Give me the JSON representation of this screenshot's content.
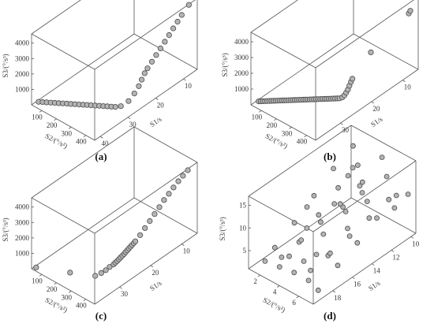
{
  "chart_data": [
    {
      "type": "scatter",
      "projection": "3d",
      "panel_label": "(a)",
      "xlabel": "S1/s",
      "ylabel": "S2/(°/s²)",
      "zlabel": "S3/(°/s³)",
      "xticks": [
        "10",
        "20",
        "30",
        "40"
      ],
      "yticks": [
        "100",
        "200",
        "300",
        "400"
      ],
      "zticks": [
        "1000",
        "2000",
        "3000",
        "4000"
      ],
      "xlim": [
        5,
        42
      ],
      "ylim": [
        30,
        460
      ],
      "zlim": [
        0,
        4600
      ],
      "points": [
        {
          "x": 40,
          "y": 40,
          "z": 0
        },
        {
          "x": 39.6,
          "y": 60,
          "z": 40
        },
        {
          "x": 39.2,
          "y": 80,
          "z": 80
        },
        {
          "x": 38.8,
          "y": 100,
          "z": 120
        },
        {
          "x": 38.4,
          "y": 120,
          "z": 160
        },
        {
          "x": 38,
          "y": 140,
          "z": 200
        },
        {
          "x": 37.6,
          "y": 160,
          "z": 240
        },
        {
          "x": 37.2,
          "y": 180,
          "z": 280
        },
        {
          "x": 36.8,
          "y": 200,
          "z": 320
        },
        {
          "x": 36.4,
          "y": 220,
          "z": 360
        },
        {
          "x": 36,
          "y": 240,
          "z": 400
        },
        {
          "x": 35.6,
          "y": 260,
          "z": 440
        },
        {
          "x": 35.2,
          "y": 280,
          "z": 480
        },
        {
          "x": 34.8,
          "y": 300,
          "z": 520
        },
        {
          "x": 34.4,
          "y": 320,
          "z": 560
        },
        {
          "x": 34,
          "y": 340,
          "z": 600
        },
        {
          "x": 33.6,
          "y": 360,
          "z": 640
        },
        {
          "x": 33.2,
          "y": 380,
          "z": 680
        },
        {
          "x": 32.8,
          "y": 400,
          "z": 720
        },
        {
          "x": 32.4,
          "y": 420,
          "z": 760
        },
        {
          "x": 31.5,
          "y": 440,
          "z": 800
        },
        {
          "x": 29,
          "y": 445,
          "z": 850
        },
        {
          "x": 27,
          "y": 447,
          "z": 1100
        },
        {
          "x": 25.5,
          "y": 449,
          "z": 1400
        },
        {
          "x": 24.5,
          "y": 450,
          "z": 1700
        },
        {
          "x": 23.5,
          "y": 451,
          "z": 2000
        },
        {
          "x": 22.5,
          "y": 452,
          "z": 2200
        },
        {
          "x": 21,
          "y": 453,
          "z": 2450
        },
        {
          "x": 19.5,
          "y": 454,
          "z": 2700
        },
        {
          "x": 18,
          "y": 455,
          "z": 2950
        },
        {
          "x": 16.5,
          "y": 456,
          "z": 3200
        },
        {
          "x": 15,
          "y": 457,
          "z": 3450
        },
        {
          "x": 13.5,
          "y": 457,
          "z": 3700
        },
        {
          "x": 12,
          "y": 458,
          "z": 3950
        },
        {
          "x": 10.5,
          "y": 458,
          "z": 4200
        },
        {
          "x": 8,
          "y": 459,
          "z": 4550
        }
      ]
    },
    {
      "type": "scatter",
      "projection": "3d",
      "panel_label": "(b)",
      "xlabel": "S1/s",
      "ylabel": "S2/(°/s²)",
      "zlabel": "S3/(°/s³)",
      "xticks": [
        "10",
        "20",
        "30"
      ],
      "yticks": [
        "100",
        "200",
        "300",
        "400"
      ],
      "zticks": [
        "1000",
        "2000",
        "3000",
        "4000"
      ],
      "xlim": [
        5,
        38
      ],
      "ylim": [
        30,
        460
      ],
      "zlim": [
        0,
        4600
      ],
      "points": [
        {
          "x": 36,
          "y": 40,
          "z": 0
        },
        {
          "x": 35.8,
          "y": 50,
          "z": 30
        },
        {
          "x": 35.6,
          "y": 60,
          "z": 60
        },
        {
          "x": 35.4,
          "y": 70,
          "z": 90
        },
        {
          "x": 35.2,
          "y": 80,
          "z": 120
        },
        {
          "x": 35,
          "y": 90,
          "z": 150
        },
        {
          "x": 34.8,
          "y": 100,
          "z": 180
        },
        {
          "x": 34.6,
          "y": 110,
          "z": 210
        },
        {
          "x": 34.4,
          "y": 120,
          "z": 240
        },
        {
          "x": 34.2,
          "y": 130,
          "z": 270
        },
        {
          "x": 34,
          "y": 140,
          "z": 300
        },
        {
          "x": 33.8,
          "y": 150,
          "z": 330
        },
        {
          "x": 33.6,
          "y": 160,
          "z": 360
        },
        {
          "x": 33.4,
          "y": 170,
          "z": 390
        },
        {
          "x": 33.2,
          "y": 180,
          "z": 420
        },
        {
          "x": 33,
          "y": 190,
          "z": 450
        },
        {
          "x": 32.8,
          "y": 200,
          "z": 480
        },
        {
          "x": 32.6,
          "y": 210,
          "z": 510
        },
        {
          "x": 32.4,
          "y": 220,
          "z": 540
        },
        {
          "x": 32.2,
          "y": 230,
          "z": 570
        },
        {
          "x": 32,
          "y": 240,
          "z": 600
        },
        {
          "x": 31.8,
          "y": 250,
          "z": 630
        },
        {
          "x": 31.6,
          "y": 260,
          "z": 660
        },
        {
          "x": 31.4,
          "y": 270,
          "z": 690
        },
        {
          "x": 31.2,
          "y": 280,
          "z": 720
        },
        {
          "x": 31,
          "y": 290,
          "z": 750
        },
        {
          "x": 30.8,
          "y": 300,
          "z": 780
        },
        {
          "x": 30.6,
          "y": 310,
          "z": 810
        },
        {
          "x": 30.4,
          "y": 320,
          "z": 840
        },
        {
          "x": 30.2,
          "y": 330,
          "z": 870
        },
        {
          "x": 30,
          "y": 340,
          "z": 900
        },
        {
          "x": 29.8,
          "y": 350,
          "z": 930
        },
        {
          "x": 29.6,
          "y": 360,
          "z": 960
        },
        {
          "x": 29.4,
          "y": 370,
          "z": 990
        },
        {
          "x": 29.2,
          "y": 380,
          "z": 1020
        },
        {
          "x": 29,
          "y": 390,
          "z": 1050
        },
        {
          "x": 28.8,
          "y": 400,
          "z": 1080
        },
        {
          "x": 28.6,
          "y": 410,
          "z": 1110
        },
        {
          "x": 28.4,
          "y": 420,
          "z": 1140
        },
        {
          "x": 28,
          "y": 430,
          "z": 1200
        },
        {
          "x": 27.6,
          "y": 436,
          "z": 1300
        },
        {
          "x": 27.2,
          "y": 440,
          "z": 1450
        },
        {
          "x": 26.8,
          "y": 443,
          "z": 1600
        },
        {
          "x": 26.4,
          "y": 445,
          "z": 1800
        },
        {
          "x": 26,
          "y": 447,
          "z": 2000
        },
        {
          "x": 25.6,
          "y": 448,
          "z": 2150
        },
        {
          "x": 20,
          "y": 455,
          "z": 3100
        },
        {
          "x": 8,
          "y": 459,
          "z": 3950
        },
        {
          "x": 7.5,
          "y": 459,
          "z": 4050
        }
      ]
    },
    {
      "type": "scatter",
      "projection": "3d",
      "panel_label": "(c)",
      "xlabel": "S1/s",
      "ylabel": "S2/(°/s²)",
      "zlabel": "S3/(°/s³)",
      "xticks": [
        "10",
        "20",
        "30"
      ],
      "yticks": [
        "100",
        "200",
        "300",
        "400"
      ],
      "zticks": [
        "1000",
        "2000",
        "3000",
        "4000"
      ],
      "xlim": [
        5,
        38
      ],
      "ylim": [
        30,
        460
      ],
      "zlim": [
        0,
        4600
      ],
      "points": [
        {
          "x": 37,
          "y": 40,
          "z": 0
        },
        {
          "x": 36,
          "y": 250,
          "z": 650
        },
        {
          "x": 35,
          "y": 400,
          "z": 1100
        },
        {
          "x": 34,
          "y": 420,
          "z": 1250
        },
        {
          "x": 33,
          "y": 430,
          "z": 1350
        },
        {
          "x": 32,
          "y": 435,
          "z": 1450
        },
        {
          "x": 31,
          "y": 440,
          "z": 1500
        },
        {
          "x": 30.5,
          "y": 442,
          "z": 1550
        },
        {
          "x": 30,
          "y": 444,
          "z": 1600
        },
        {
          "x": 29.5,
          "y": 445,
          "z": 1650
        },
        {
          "x": 29,
          "y": 446,
          "z": 1700
        },
        {
          "x": 28.5,
          "y": 447,
          "z": 1750
        },
        {
          "x": 28,
          "y": 448,
          "z": 1800
        },
        {
          "x": 27.5,
          "y": 448,
          "z": 1850
        },
        {
          "x": 27,
          "y": 449,
          "z": 1900
        },
        {
          "x": 26.5,
          "y": 449,
          "z": 1950
        },
        {
          "x": 26,
          "y": 450,
          "z": 2000
        },
        {
          "x": 25.5,
          "y": 450,
          "z": 2050
        },
        {
          "x": 25,
          "y": 451,
          "z": 2100
        },
        {
          "x": 24.5,
          "y": 451,
          "z": 2150
        },
        {
          "x": 23,
          "y": 452,
          "z": 2350
        },
        {
          "x": 21.5,
          "y": 453,
          "z": 2600
        },
        {
          "x": 20,
          "y": 454,
          "z": 2850
        },
        {
          "x": 18.5,
          "y": 455,
          "z": 3100
        },
        {
          "x": 17,
          "y": 456,
          "z": 3350
        },
        {
          "x": 15.5,
          "y": 456,
          "z": 3600
        },
        {
          "x": 14,
          "y": 457,
          "z": 3800
        },
        {
          "x": 12.5,
          "y": 457,
          "z": 4000
        },
        {
          "x": 11,
          "y": 458,
          "z": 4200
        },
        {
          "x": 9.5,
          "y": 458,
          "z": 4350
        },
        {
          "x": 8,
          "y": 459,
          "z": 4500
        }
      ]
    },
    {
      "type": "scatter",
      "projection": "3d",
      "panel_label": "(d)",
      "xlabel": "S1/s",
      "ylabel": "S2/(°/s²)",
      "zlabel": "S3/(°/s³)",
      "xticks": [
        "10",
        "12",
        "14",
        "16",
        "18"
      ],
      "yticks": [
        "2",
        "4",
        "6"
      ],
      "zticks": [
        "5",
        "10",
        "15"
      ],
      "xlim": [
        9.5,
        20
      ],
      "ylim": [
        0.8,
        7.5
      ],
      "zlim": [
        1,
        17
      ],
      "points": [
        {
          "x": 19,
          "y": 1.5,
          "z": 2
        },
        {
          "x": 18,
          "y": 1.5,
          "z": 3.5
        },
        {
          "x": 16,
          "y": 1.5,
          "z": 6
        },
        {
          "x": 14,
          "y": 1.5,
          "z": 9
        },
        {
          "x": 12,
          "y": 1.5,
          "z": 12
        },
        {
          "x": 10,
          "y": 1.5,
          "z": 14
        },
        {
          "x": 19,
          "y": 3,
          "z": 2.5
        },
        {
          "x": 17,
          "y": 3,
          "z": 5
        },
        {
          "x": 15,
          "y": 3,
          "z": 8
        },
        {
          "x": 13,
          "y": 3,
          "z": 11
        },
        {
          "x": 11,
          "y": 3,
          "z": 13
        },
        {
          "x": 19,
          "y": 4.5,
          "z": 3
        },
        {
          "x": 18,
          "y": 4.5,
          "z": 4
        },
        {
          "x": 16,
          "y": 4.5,
          "z": 7
        },
        {
          "x": 14,
          "y": 4.5,
          "z": 10
        },
        {
          "x": 12,
          "y": 4.5,
          "z": 12.5
        },
        {
          "x": 10,
          "y": 4.5,
          "z": 15
        },
        {
          "x": 19,
          "y": 6,
          "z": 3
        },
        {
          "x": 17,
          "y": 6,
          "z": 5.5
        },
        {
          "x": 15,
          "y": 6,
          "z": 8.5
        },
        {
          "x": 13,
          "y": 6,
          "z": 11.5
        },
        {
          "x": 11,
          "y": 6,
          "z": 14
        },
        {
          "x": 19,
          "y": 7,
          "z": 2
        },
        {
          "x": 17,
          "y": 7,
          "z": 4.5
        },
        {
          "x": 15,
          "y": 7,
          "z": 6.5
        },
        {
          "x": 13,
          "y": 7,
          "z": 9
        },
        {
          "x": 11,
          "y": 7,
          "z": 11
        },
        {
          "x": 18,
          "y": 2.2,
          "z": 2.2
        },
        {
          "x": 16,
          "y": 2.2,
          "z": 3
        },
        {
          "x": 14,
          "y": 2.2,
          "z": 4
        },
        {
          "x": 12,
          "y": 2.2,
          "z": 5
        },
        {
          "x": 10,
          "y": 2.2,
          "z": 6
        },
        {
          "x": 18,
          "y": 5.2,
          "z": 2.8
        },
        {
          "x": 16,
          "y": 5.2,
          "z": 3.6
        },
        {
          "x": 14,
          "y": 5.2,
          "z": 4.4
        },
        {
          "x": 12,
          "y": 5.2,
          "z": 5.4
        },
        {
          "x": 10,
          "y": 5.2,
          "z": 6.5
        },
        {
          "x": 17,
          "y": 3.8,
          "z": 9
        },
        {
          "x": 15,
          "y": 5.8,
          "z": 12
        },
        {
          "x": 13,
          "y": 2.6,
          "z": 7
        },
        {
          "x": 11,
          "y": 6.8,
          "z": 8
        },
        {
          "x": 10,
          "y": 7.2,
          "z": 10
        },
        {
          "x": 12,
          "y": 3.5,
          "z": 14.5
        },
        {
          "x": 14,
          "y": 6.5,
          "z": 15.5
        },
        {
          "x": 18,
          "y": 5.8,
          "z": 7
        },
        {
          "x": 16,
          "y": 2.8,
          "z": 11
        },
        {
          "x": 19,
          "y": 4,
          "z": 6
        },
        {
          "x": 11,
          "y": 2,
          "z": 9.5
        }
      ]
    }
  ]
}
